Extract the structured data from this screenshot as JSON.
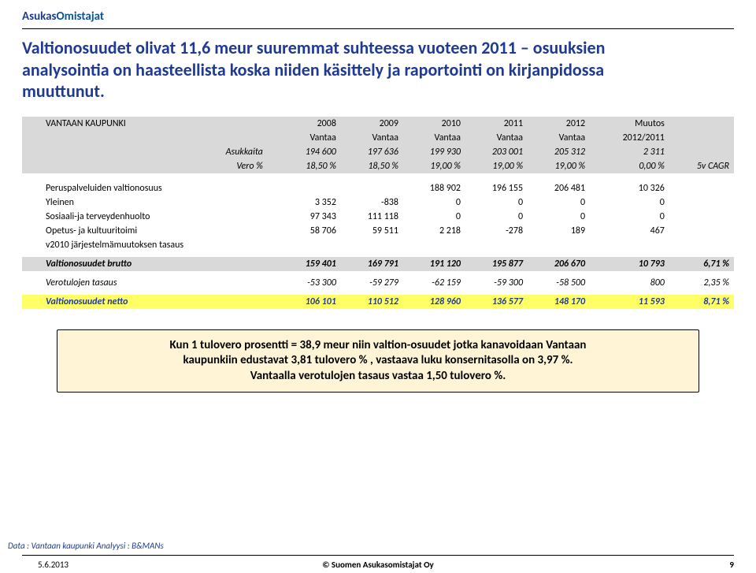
{
  "brand": {
    "part1": "Asukas",
    "part2": "Omistajat"
  },
  "title": {
    "line1": "Valtionosuudet olivat 11,6 meur suuremmat suhteessa vuoteen 2011 – osuuksien",
    "line2": "analysointia on haasteellista koska niiden käsittely ja raportointi on kirjanpidossa",
    "line3": "muuttunut."
  },
  "header": {
    "entity": "VANTAAN KAUPUNKI",
    "rows_left": [
      "",
      "Asukkaita",
      "Vero %"
    ],
    "cols": [
      {
        "y": "2008",
        "n": "Vantaa",
        "a": "194 600",
        "v": "18,50 %"
      },
      {
        "y": "2009",
        "n": "Vantaa",
        "a": "197 636",
        "v": "18,50 %"
      },
      {
        "y": "2010",
        "n": "Vantaa",
        "a": "199 930",
        "v": "19,00 %"
      },
      {
        "y": "2011",
        "n": "Vantaa",
        "a": "203 001",
        "v": "19,00 %"
      },
      {
        "y": "2012",
        "n": "Vantaa",
        "a": "205 312",
        "v": "19,00 %"
      },
      {
        "y": "Muutos",
        "n": "2012/2011",
        "a": "2 311",
        "v": "0,00 %"
      }
    ],
    "extra": "5v CAGR"
  },
  "body": {
    "r1": {
      "label": "Peruspalveluiden valtionosuus",
      "c": [
        "",
        "",
        "188 902",
        "196 155",
        "206 481",
        "10 326"
      ]
    },
    "r2": {
      "label": "Yleinen",
      "c": [
        "3 352",
        "-838",
        "0",
        "0",
        "0",
        "0"
      ]
    },
    "r3": {
      "label": "Sosiaali-ja terveydenhuolto",
      "c": [
        "97 343",
        "111 118",
        "0",
        "0",
        "0",
        "0"
      ]
    },
    "r4": {
      "label": "Opetus- ja kultuuritoimi",
      "c": [
        "58 706",
        "59 511",
        "2 218",
        "-278",
        "189",
        "467"
      ]
    },
    "r5": {
      "label": "v2010 järjestelmämuutoksen tasaus",
      "c": [
        "",
        "",
        "",
        "",
        "",
        ""
      ]
    },
    "brutto": {
      "label": "Valtionosuudet brutto",
      "c": [
        "159 401",
        "169 791",
        "191 120",
        "195 877",
        "206 670",
        "10 793",
        "6,71 %"
      ]
    },
    "r7": {
      "label": "Verotulojen tasaus",
      "c": [
        "-53 300",
        "-59 279",
        "-62 159",
        "-59 300",
        "-58 500",
        "800",
        "2,35 %"
      ]
    },
    "netto": {
      "label": "Valtionosuudet netto",
      "c": [
        "106 101",
        "110 512",
        "128 960",
        "136 577",
        "148 170",
        "11 593",
        "8,71 %"
      ]
    }
  },
  "note": {
    "line1": "Kun 1 tulovero prosentti = 38,9 meur niin valtion-osuudet jotka kanavoidaan Vantaan",
    "line2": "kaupunkiin edustavat 3,81 tulovero % , vastaava luku konsernitasolla on 3,97 %.",
    "line3": "Vantaalla verotulojen tasaus vastaa 1,50 tulovero %."
  },
  "footer": {
    "source": "Data : Vantaan kaupunki   Analyysi : B&MANs",
    "date": "5.6.2013",
    "center": "© Suomen Asukasomistajat Oy",
    "page": "9"
  },
  "style": {
    "brand_color": "#1f3a93",
    "highlight_bg": "#ffff66",
    "header_bg": "#d9d9d9",
    "note_bg": "#fff4d6"
  }
}
